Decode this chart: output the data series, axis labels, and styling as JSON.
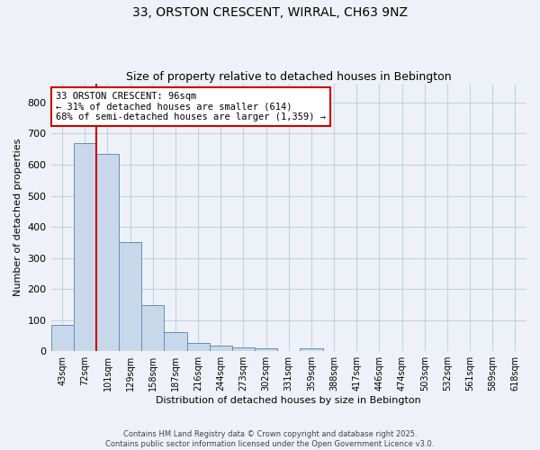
{
  "title1": "33, ORSTON CRESCENT, WIRRAL, CH63 9NZ",
  "title2": "Size of property relative to detached houses in Bebington",
  "xlabel": "Distribution of detached houses by size in Bebington",
  "ylabel": "Number of detached properties",
  "categories": [
    "43sqm",
    "72sqm",
    "101sqm",
    "129sqm",
    "158sqm",
    "187sqm",
    "216sqm",
    "244sqm",
    "273sqm",
    "302sqm",
    "331sqm",
    "359sqm",
    "388sqm",
    "417sqm",
    "446sqm",
    "474sqm",
    "503sqm",
    "532sqm",
    "561sqm",
    "589sqm",
    "618sqm"
  ],
  "values": [
    85,
    670,
    635,
    350,
    148,
    60,
    28,
    18,
    13,
    8,
    0,
    8,
    0,
    0,
    0,
    0,
    0,
    0,
    0,
    0,
    0
  ],
  "bar_color": "#c8d8ea",
  "bar_edge_color": "#6090b8",
  "vline_color": "#cc0000",
  "annotation_text": "33 ORSTON CRESCENT: 96sqm\n← 31% of detached houses are smaller (614)\n68% of semi-detached houses are larger (1,359) →",
  "annotation_box_facecolor": "#ffffff",
  "annotation_box_edgecolor": "#cc0000",
  "ylim": [
    0,
    860
  ],
  "yticks": [
    0,
    100,
    200,
    300,
    400,
    500,
    600,
    700,
    800
  ],
  "grid_color": "#c8d0e0",
  "bg_color": "#eef2f8",
  "footnote1": "Contains HM Land Registry data © Crown copyright and database right 2025.",
  "footnote2": "Contains public sector information licensed under the Open Government Licence v3.0."
}
